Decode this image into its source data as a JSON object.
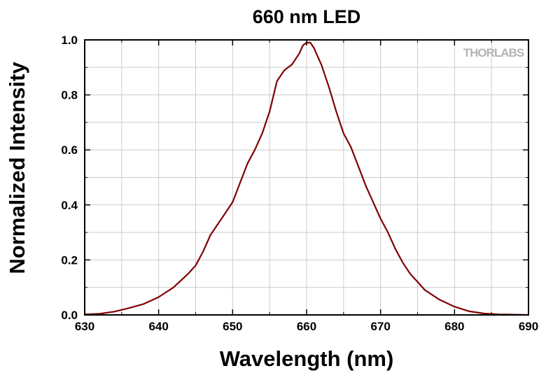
{
  "chart_data": {
    "type": "line",
    "title": "660 nm LED",
    "xlabel": "Wavelength (nm)",
    "ylabel": "Normalized Intensity",
    "xlim": [
      630,
      690
    ],
    "ylim": [
      0,
      1.0
    ],
    "x_ticks": [
      "630",
      "640",
      "650",
      "660",
      "670",
      "680",
      "690"
    ],
    "y_ticks": [
      "0.0",
      "0.2",
      "0.4",
      "0.6",
      "0.8",
      "1.0"
    ],
    "grid": true,
    "legend": "none",
    "watermark": "THORLABS",
    "series": [
      {
        "color": "#800000",
        "x": [
          630,
          632,
          634,
          636,
          638,
          640,
          642,
          644,
          645,
          646,
          647,
          648,
          649,
          650,
          651,
          652,
          653,
          654,
          655,
          656,
          657,
          658,
          659,
          659.5,
          660,
          660.5,
          661,
          662,
          663,
          664,
          665,
          666,
          667,
          668,
          669,
          670,
          671,
          672,
          673,
          674,
          675,
          676,
          678,
          680,
          682,
          684,
          686,
          688,
          690
        ],
        "y": [
          0.002,
          0.004,
          0.012,
          0.025,
          0.04,
          0.065,
          0.1,
          0.15,
          0.18,
          0.23,
          0.29,
          0.33,
          0.37,
          0.41,
          0.48,
          0.55,
          0.6,
          0.66,
          0.74,
          0.85,
          0.89,
          0.91,
          0.95,
          0.98,
          0.99,
          0.99,
          0.97,
          0.91,
          0.83,
          0.74,
          0.66,
          0.61,
          0.54,
          0.47,
          0.41,
          0.35,
          0.3,
          0.24,
          0.19,
          0.15,
          0.12,
          0.09,
          0.055,
          0.03,
          0.013,
          0.005,
          0.002,
          0.001,
          0.0
        ]
      }
    ]
  }
}
